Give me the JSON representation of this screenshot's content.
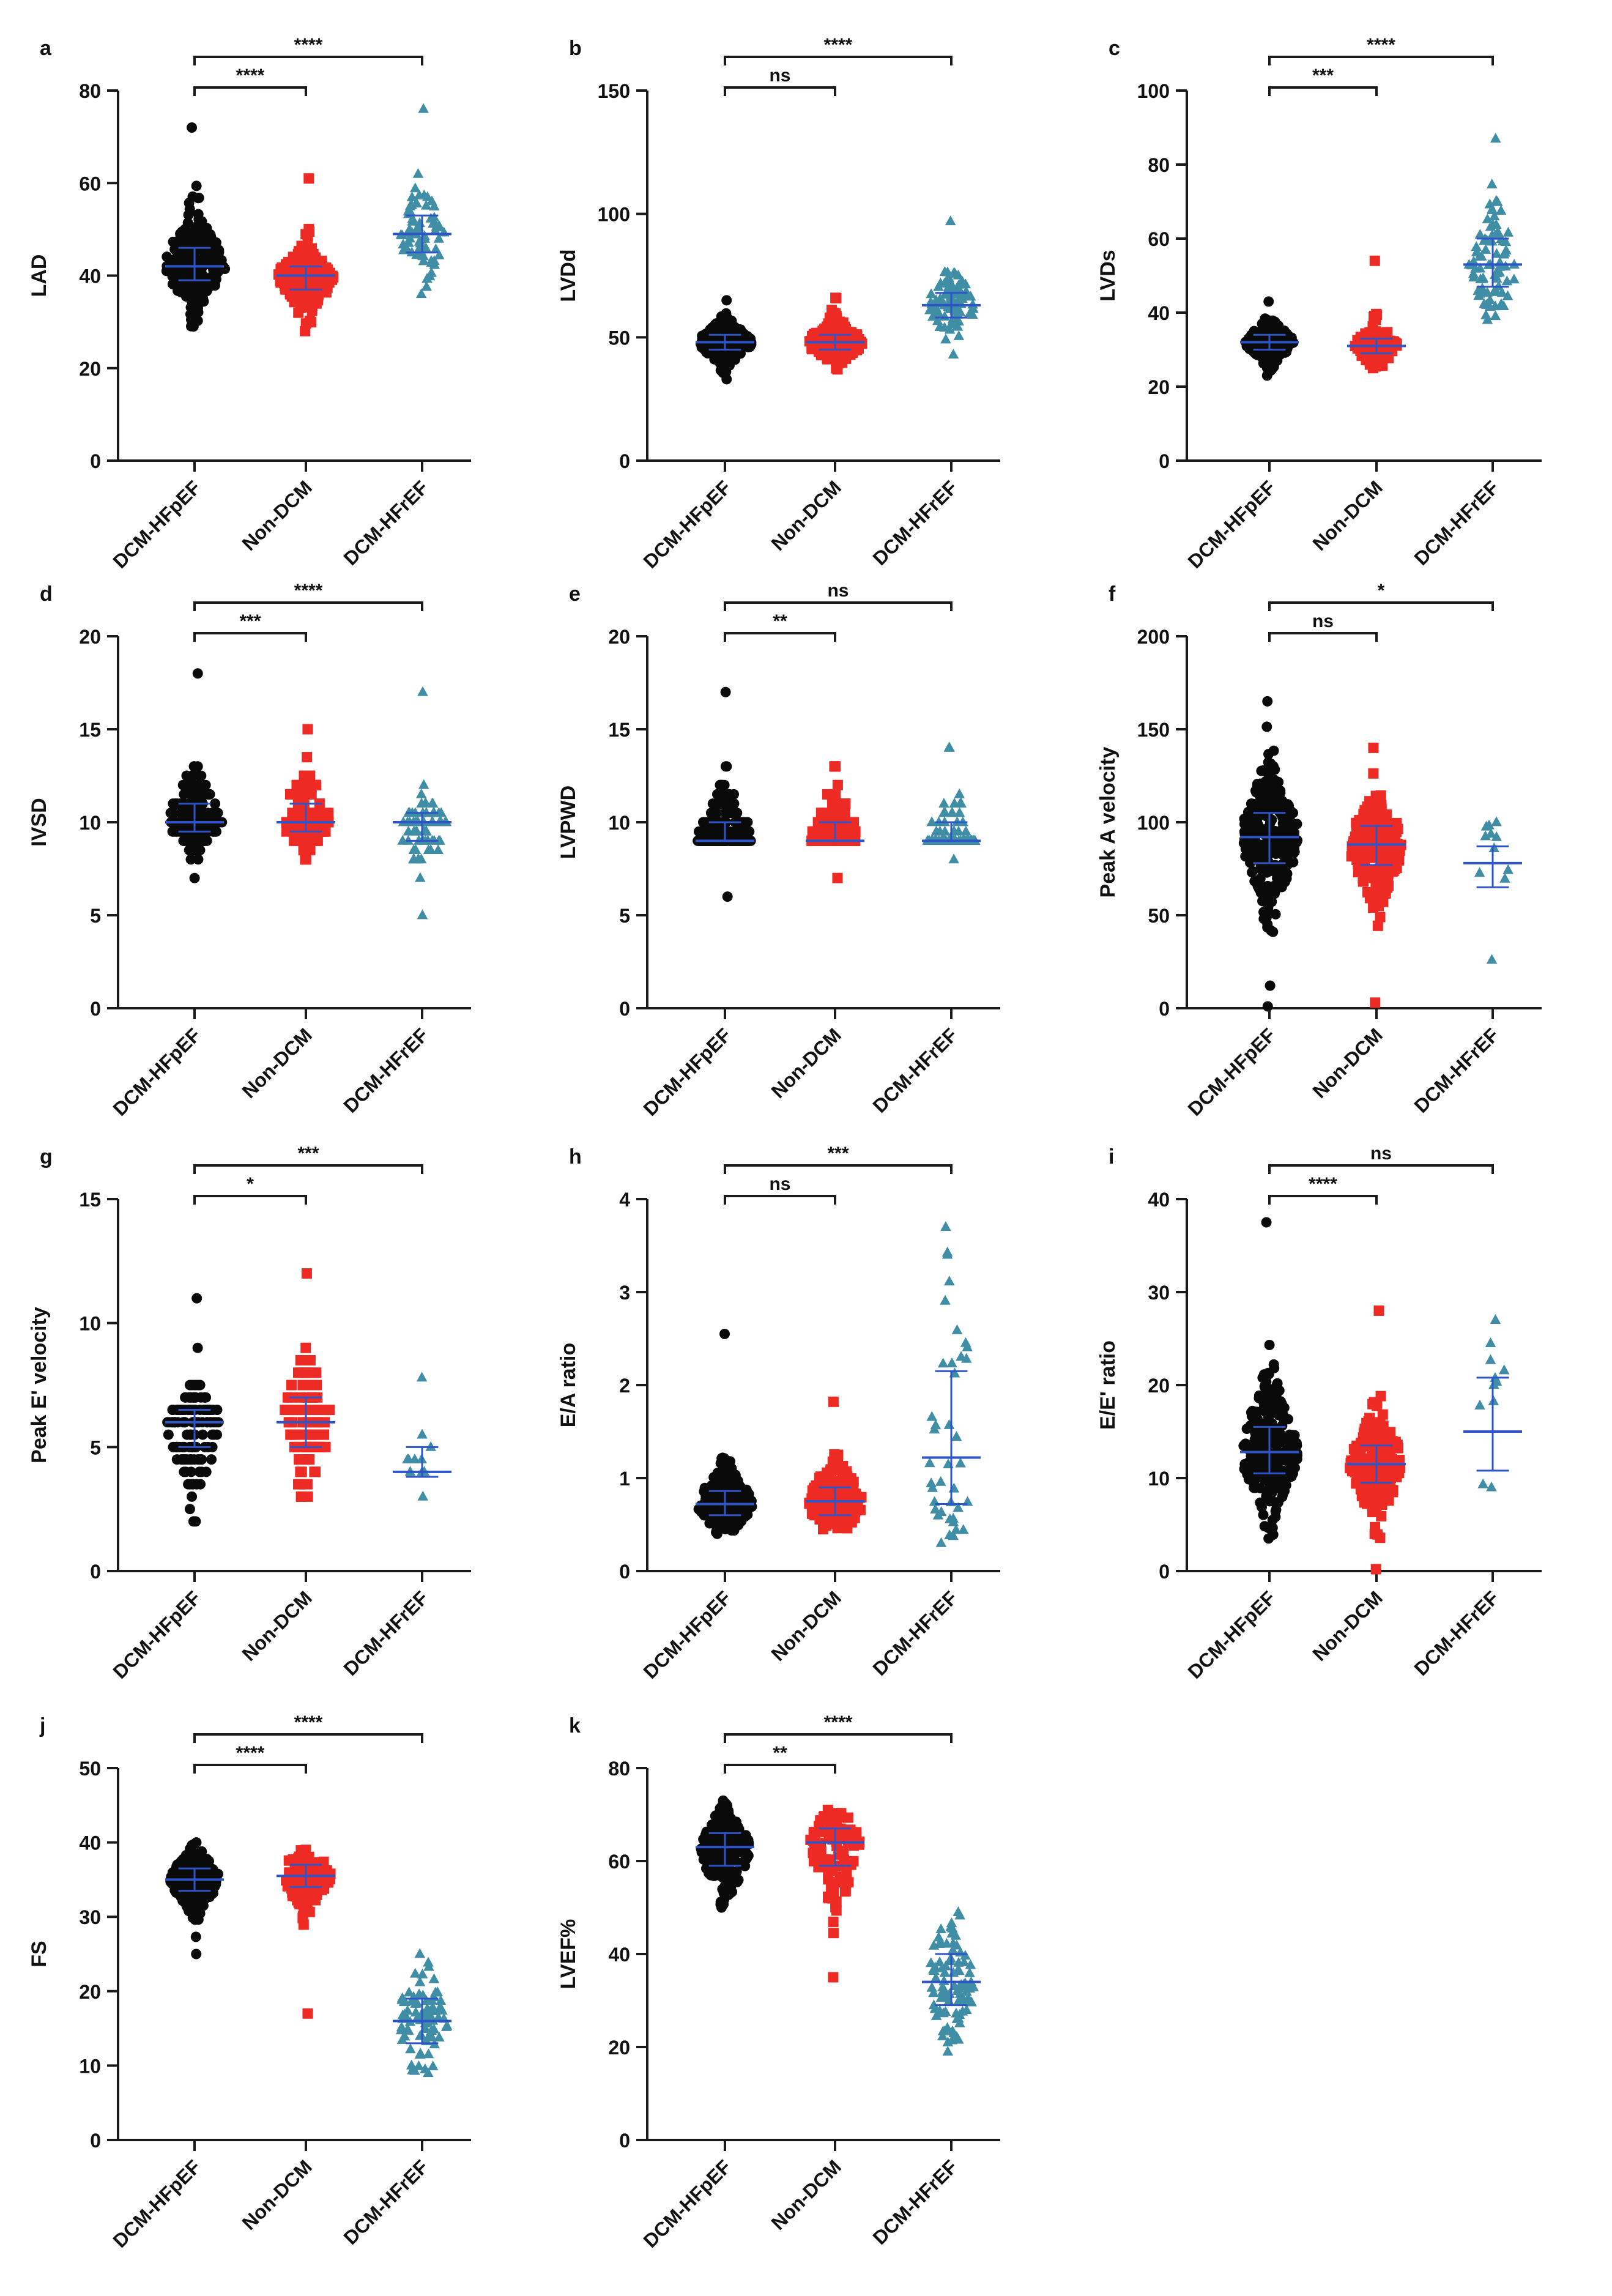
{
  "figure": {
    "colors": {
      "DCM-HFpEF": "#0a0a0a",
      "Non-DCM": "#ee2a24",
      "DCM-HFrEF": "#3f8ea6",
      "summary": "#2e55c8",
      "axis": "#1a1a1a"
    },
    "markers": {
      "DCM-HFpEF": "circle",
      "Non-DCM": "square",
      "DCM-HFrEF": "triangle"
    }
  },
  "chart_data": [
    {
      "type": "scatter",
      "letter": "a",
      "ylabel": "LAD",
      "ylim": [
        0,
        80
      ],
      "yticks": [
        0,
        20,
        40,
        60,
        80
      ],
      "categories": [
        "DCM-HFpEF",
        "Non-DCM",
        "DCM-HFrEF"
      ],
      "groups": [
        {
          "name": "DCM-HFpEF",
          "n": 260,
          "min": 29,
          "max": 72,
          "q1": 39,
          "median": 42,
          "q3": 46,
          "width": 0.55
        },
        {
          "name": "Non-DCM",
          "n": 200,
          "min": 28,
          "max": 61,
          "q1": 37,
          "median": 40,
          "q3": 42,
          "width": 0.5
        },
        {
          "name": "DCM-HFrEF",
          "n": 70,
          "min": 36,
          "max": 76,
          "q1": 45,
          "median": 49,
          "q3": 53,
          "width": 0.4
        }
      ],
      "comparisons": [
        {
          "from": 0,
          "to": 1,
          "label": "****"
        },
        {
          "from": 0,
          "to": 2,
          "label": "****"
        }
      ]
    },
    {
      "type": "scatter",
      "letter": "b",
      "ylabel": "LVDd",
      "ylim": [
        0,
        150
      ],
      "yticks": [
        0,
        50,
        100,
        150
      ],
      "categories": [
        "DCM-HFpEF",
        "Non-DCM",
        "DCM-HFrEF"
      ],
      "groups": [
        {
          "name": "DCM-HFpEF",
          "n": 230,
          "min": 33,
          "max": 65,
          "q1": 45,
          "median": 48,
          "q3": 51,
          "width": 0.5
        },
        {
          "name": "Non-DCM",
          "n": 200,
          "min": 37,
          "max": 66,
          "q1": 45,
          "median": 48,
          "q3": 51,
          "width": 0.5
        },
        {
          "name": "DCM-HFrEF",
          "n": 80,
          "min": 43,
          "max": 97,
          "q1": 58,
          "median": 63,
          "q3": 68,
          "width": 0.45
        }
      ],
      "comparisons": [
        {
          "from": 0,
          "to": 1,
          "label": "ns"
        },
        {
          "from": 0,
          "to": 2,
          "label": "****"
        }
      ]
    },
    {
      "type": "scatter",
      "letter": "c",
      "ylabel": "LVDs",
      "ylim": [
        0,
        100
      ],
      "yticks": [
        0,
        20,
        40,
        60,
        80,
        100
      ],
      "categories": [
        "DCM-HFpEF",
        "Non-DCM",
        "DCM-HFrEF"
      ],
      "groups": [
        {
          "name": "DCM-HFpEF",
          "n": 200,
          "min": 23,
          "max": 43,
          "q1": 30,
          "median": 32,
          "q3": 34,
          "width": 0.45
        },
        {
          "name": "Non-DCM",
          "n": 120,
          "min": 25,
          "max": 54,
          "q1": 29,
          "median": 31,
          "q3": 33,
          "width": 0.4
        },
        {
          "name": "DCM-HFrEF",
          "n": 80,
          "min": 38,
          "max": 87,
          "q1": 47,
          "median": 53,
          "q3": 60,
          "width": 0.45
        }
      ],
      "comparisons": [
        {
          "from": 0,
          "to": 1,
          "label": "***"
        },
        {
          "from": 0,
          "to": 2,
          "label": "****"
        }
      ]
    },
    {
      "type": "scatter",
      "letter": "d",
      "ylabel": "IVSD",
      "ylim": [
        0,
        20
      ],
      "yticks": [
        0,
        5,
        10,
        15,
        20
      ],
      "categories": [
        "DCM-HFpEF",
        "Non-DCM",
        "DCM-HFrEF"
      ],
      "groups": [
        {
          "name": "DCM-HFpEF",
          "n": 220,
          "min": 7,
          "max": 18,
          "q1": 9.5,
          "median": 10,
          "q3": 11,
          "width": 0.5,
          "step": 0.5
        },
        {
          "name": "Non-DCM",
          "n": 110,
          "min": 8,
          "max": 15,
          "q1": 9.5,
          "median": 10,
          "q3": 11,
          "width": 0.45,
          "step": 0.5
        },
        {
          "name": "DCM-HFrEF",
          "n": 70,
          "min": 5,
          "max": 17,
          "q1": 9,
          "median": 10,
          "q3": 10.5,
          "width": 0.45,
          "step": 0.5
        }
      ],
      "comparisons": [
        {
          "from": 0,
          "to": 1,
          "label": "***"
        },
        {
          "from": 0,
          "to": 2,
          "label": "****"
        }
      ]
    },
    {
      "type": "scatter",
      "letter": "e",
      "ylabel": "LVPWD",
      "ylim": [
        0,
        20
      ],
      "yticks": [
        0,
        5,
        10,
        15,
        20
      ],
      "categories": [
        "DCM-HFpEF",
        "Non-DCM",
        "DCM-HFrEF"
      ],
      "groups": [
        {
          "name": "DCM-HFpEF",
          "n": 220,
          "min": 6,
          "max": 17,
          "q1": 9,
          "median": 9,
          "q3": 10,
          "width": 0.5,
          "step": 0.5
        },
        {
          "name": "Non-DCM",
          "n": 100,
          "min": 7,
          "max": 13,
          "q1": 9,
          "median": 9,
          "q3": 10,
          "width": 0.45,
          "step": 0.5
        },
        {
          "name": "DCM-HFrEF",
          "n": 70,
          "min": 8,
          "max": 14,
          "q1": 9,
          "median": 9,
          "q3": 10,
          "width": 0.45,
          "step": 0.5
        }
      ],
      "comparisons": [
        {
          "from": 0,
          "to": 1,
          "label": "**"
        },
        {
          "from": 0,
          "to": 2,
          "label": "ns"
        }
      ]
    },
    {
      "type": "scatter",
      "letter": "f",
      "ylabel": "Peak A velocity",
      "ylim": [
        0,
        200
      ],
      "yticks": [
        0,
        50,
        100,
        150,
        200
      ],
      "categories": [
        "DCM-HFpEF",
        "Non-DCM",
        "DCM-HFrEF"
      ],
      "groups": [
        {
          "name": "DCM-HFpEF",
          "n": 260,
          "min": 1,
          "max": 165,
          "q1": 78,
          "median": 92,
          "q3": 105,
          "width": 0.55
        },
        {
          "name": "Non-DCM",
          "n": 220,
          "min": 3,
          "max": 140,
          "q1": 77,
          "median": 88,
          "q3": 98,
          "width": 0.5
        },
        {
          "name": "DCM-HFrEF",
          "n": 11,
          "min": 26,
          "max": 100,
          "q1": 65,
          "median": 78,
          "q3": 87,
          "width": 0.3
        }
      ],
      "comparisons": [
        {
          "from": 0,
          "to": 1,
          "label": "ns"
        },
        {
          "from": 0,
          "to": 2,
          "label": "*"
        }
      ]
    },
    {
      "type": "scatter",
      "letter": "g",
      "ylabel": "Peak E' velocity",
      "ylim": [
        0,
        15
      ],
      "yticks": [
        0,
        5,
        10,
        15
      ],
      "categories": [
        "DCM-HFpEF",
        "Non-DCM",
        "DCM-HFrEF"
      ],
      "groups": [
        {
          "name": "DCM-HFpEF",
          "n": 150,
          "min": 2,
          "max": 11,
          "q1": 5,
          "median": 6,
          "q3": 6.5,
          "width": 0.5,
          "step": 0.5
        },
        {
          "name": "Non-DCM",
          "n": 90,
          "min": 3,
          "max": 12,
          "q1": 5,
          "median": 6,
          "q3": 7,
          "width": 0.45,
          "step": 0.5
        },
        {
          "name": "DCM-HFrEF",
          "n": 11,
          "min": 3,
          "max": 7.8,
          "q1": 3.8,
          "median": 4,
          "q3": 5,
          "width": 0.3,
          "step": 0.5
        }
      ],
      "comparisons": [
        {
          "from": 0,
          "to": 1,
          "label": "*"
        },
        {
          "from": 0,
          "to": 2,
          "label": "***"
        }
      ]
    },
    {
      "type": "scatter",
      "letter": "h",
      "ylabel": "E/A ratio",
      "ylim": [
        0,
        4
      ],
      "yticks": [
        0,
        1,
        2,
        3,
        4
      ],
      "categories": [
        "DCM-HFpEF",
        "Non-DCM",
        "DCM-HFrEF"
      ],
      "groups": [
        {
          "name": "DCM-HFpEF",
          "n": 240,
          "min": 0.4,
          "max": 2.55,
          "q1": 0.6,
          "median": 0.72,
          "q3": 0.86,
          "width": 0.5
        },
        {
          "name": "Non-DCM",
          "n": 200,
          "min": 0.45,
          "max": 1.82,
          "q1": 0.6,
          "median": 0.75,
          "q3": 0.9,
          "width": 0.5
        },
        {
          "name": "DCM-HFrEF",
          "n": 40,
          "min": 0.3,
          "max": 3.7,
          "q1": 0.72,
          "median": 1.22,
          "q3": 2.15,
          "width": 0.4
        }
      ],
      "comparisons": [
        {
          "from": 0,
          "to": 1,
          "label": "ns"
        },
        {
          "from": 0,
          "to": 2,
          "label": "***"
        }
      ]
    },
    {
      "type": "scatter",
      "letter": "i",
      "ylabel": "E/E' ratio",
      "ylim": [
        0,
        40
      ],
      "yticks": [
        0,
        10,
        20,
        30,
        40
      ],
      "categories": [
        "DCM-HFpEF",
        "Non-DCM",
        "DCM-HFrEF"
      ],
      "groups": [
        {
          "name": "DCM-HFpEF",
          "n": 260,
          "min": 3.5,
          "max": 37.5,
          "q1": 10.5,
          "median": 12.8,
          "q3": 15.5,
          "width": 0.55
        },
        {
          "name": "Non-DCM",
          "n": 220,
          "min": 0.2,
          "max": 28,
          "q1": 9.5,
          "median": 11.5,
          "q3": 13.5,
          "width": 0.5
        },
        {
          "name": "DCM-HFrEF",
          "n": 11,
          "min": 9,
          "max": 27,
          "q1": 10.8,
          "median": 15,
          "q3": 20.8,
          "width": 0.3
        }
      ],
      "comparisons": [
        {
          "from": 0,
          "to": 1,
          "label": "****"
        },
        {
          "from": 0,
          "to": 2,
          "label": "ns"
        }
      ]
    },
    {
      "type": "scatter",
      "letter": "j",
      "ylabel": "FS",
      "ylim": [
        0,
        50
      ],
      "yticks": [
        0,
        10,
        20,
        30,
        40,
        50
      ],
      "categories": [
        "DCM-HFpEF",
        "Non-DCM",
        "DCM-HFrEF"
      ],
      "groups": [
        {
          "name": "DCM-HFpEF",
          "n": 220,
          "min": 25,
          "max": 40,
          "q1": 33.5,
          "median": 35,
          "q3": 36.5,
          "width": 0.45
        },
        {
          "name": "Non-DCM",
          "n": 110,
          "min": 17,
          "max": 39,
          "q1": 34,
          "median": 35.5,
          "q3": 37,
          "width": 0.45
        },
        {
          "name": "DCM-HFrEF",
          "n": 80,
          "min": 9,
          "max": 25,
          "q1": 13,
          "median": 16,
          "q3": 19,
          "width": 0.45
        }
      ],
      "comparisons": [
        {
          "from": 0,
          "to": 1,
          "label": "****"
        },
        {
          "from": 0,
          "to": 2,
          "label": "****"
        }
      ]
    },
    {
      "type": "scatter",
      "letter": "k",
      "ylabel": "LVEF%",
      "ylim": [
        0,
        80
      ],
      "yticks": [
        0,
        20,
        40,
        60,
        80
      ],
      "categories": [
        "DCM-HFpEF",
        "Non-DCM",
        "DCM-HFrEF"
      ],
      "groups": [
        {
          "name": "DCM-HFpEF",
          "n": 220,
          "min": 50,
          "max": 73,
          "q1": 59,
          "median": 63,
          "q3": 66,
          "width": 0.45
        },
        {
          "name": "Non-DCM",
          "n": 110,
          "min": 35,
          "max": 71,
          "q1": 59,
          "median": 64,
          "q3": 67,
          "width": 0.45
        },
        {
          "name": "DCM-HFrEF",
          "n": 90,
          "min": 19,
          "max": 49,
          "q1": 29,
          "median": 34,
          "q3": 40,
          "width": 0.45
        }
      ],
      "comparisons": [
        {
          "from": 0,
          "to": 1,
          "label": "**"
        },
        {
          "from": 0,
          "to": 2,
          "label": "****"
        }
      ]
    }
  ]
}
